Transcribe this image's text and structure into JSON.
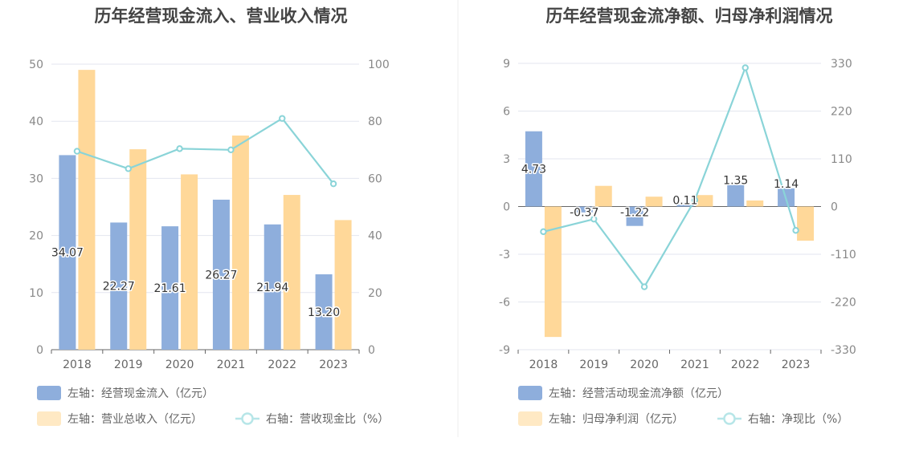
{
  "chart_data": [
    {
      "type": "bar",
      "title": "历年经营现金流入、营业收入情况",
      "categories": [
        "2018",
        "2019",
        "2020",
        "2021",
        "2022",
        "2023"
      ],
      "ylim": [
        0,
        50
      ],
      "y2lim": [
        0,
        100
      ],
      "yticks": [
        0,
        10,
        20,
        30,
        40,
        50
      ],
      "y2ticks": [
        0,
        20,
        40,
        60,
        80,
        100
      ],
      "series": [
        {
          "name": "左轴：经营现金流入（亿元）",
          "kind": "bar",
          "axis": "left",
          "color": "#8eaedc",
          "values": [
            34.07,
            22.27,
            21.61,
            26.27,
            21.94,
            13.2
          ],
          "labels": [
            "34.07",
            "22.27",
            "21.61",
            "26.27",
            "21.94",
            "13.20"
          ]
        },
        {
          "name": "左轴：营业总收入（亿元）",
          "kind": "bar",
          "axis": "left",
          "color": "#ffd899",
          "values": [
            49.0,
            35.1,
            30.7,
            37.5,
            27.1,
            22.7
          ]
        },
        {
          "name": "右轴：营收现金比（%）",
          "kind": "line",
          "axis": "right",
          "color": "#8ad4d8",
          "values": [
            69.5,
            63.4,
            70.4,
            70.0,
            81.0,
            58.1
          ]
        }
      ],
      "legend_position": "bottom-left",
      "grid": true
    },
    {
      "type": "bar",
      "title": "历年经营现金流净额、归母净利润情况",
      "categories": [
        "2018",
        "2019",
        "2020",
        "2021",
        "2022",
        "2023"
      ],
      "ylim": [
        -9,
        9
      ],
      "y2lim": [
        -330,
        330
      ],
      "yticks": [
        -9,
        -6,
        -3,
        0,
        3,
        6,
        9
      ],
      "y2ticks": [
        -330,
        -220,
        -110,
        0,
        110,
        220,
        330
      ],
      "series": [
        {
          "name": "左轴：经营活动现金流净额（亿元）",
          "kind": "bar",
          "axis": "left",
          "color": "#8eaedc",
          "values": [
            4.73,
            -0.37,
            -1.22,
            0.11,
            1.35,
            1.14
          ],
          "labels": [
            "4.73",
            "-0.37",
            "-1.22",
            "0.11",
            "1.35",
            "1.14"
          ]
        },
        {
          "name": "左轴：归母净利润（亿元）",
          "kind": "bar",
          "axis": "left",
          "color": "#ffd899",
          "values": [
            -8.2,
            1.3,
            0.62,
            0.72,
            0.38,
            -2.15
          ]
        },
        {
          "name": "右轴：净现比（%）",
          "kind": "line",
          "axis": "right",
          "color": "#8ad4d8",
          "values": [
            -58,
            -29,
            -185,
            15,
            320,
            -55
          ]
        }
      ],
      "legend_position": "bottom-left",
      "grid": true
    }
  ]
}
